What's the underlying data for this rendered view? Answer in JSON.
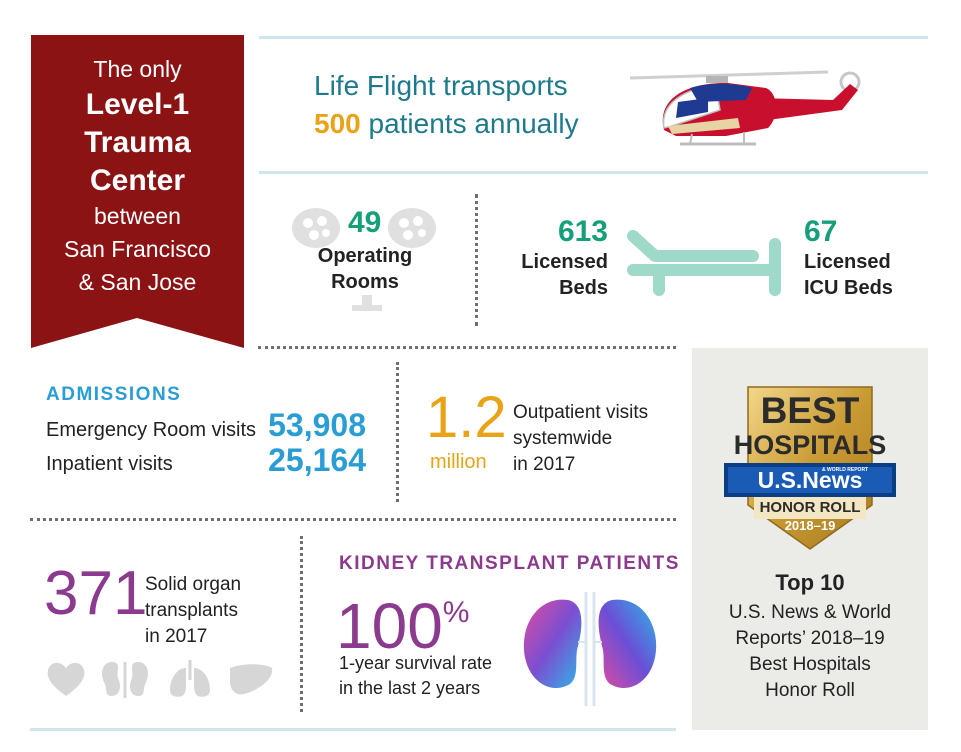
{
  "banner": {
    "line1": "The only",
    "line2": "Level-1",
    "line3": "Trauma",
    "line4": "Center",
    "line5": "between",
    "line6": "San Francisco",
    "line7": "& San Jose",
    "color": "#8b1314"
  },
  "life_flight": {
    "line1": "Life Flight transports",
    "count": "500",
    "line2_suffix": "patients annually",
    "icon": "helicopter-icon"
  },
  "operating_rooms": {
    "count": "49",
    "label_line1": "Operating",
    "label_line2": "Rooms",
    "icon": "surgical-light-icon"
  },
  "beds": {
    "licensed_count": "613",
    "licensed_line1": "Licensed",
    "licensed_line2": "Beds",
    "icu_count": "67",
    "icu_line1": "Licensed",
    "icu_line2": "ICU Beds",
    "icon": "hospital-bed-icon"
  },
  "admissions": {
    "heading": "ADMISSIONS",
    "er_label": "Emergency Room visits",
    "er_value": "53,908",
    "inpatient_label": "Inpatient visits",
    "inpatient_value": "25,164"
  },
  "outpatient": {
    "value": "1.2",
    "unit": "million",
    "line1": "Outpatient visits",
    "line2": "systemwide",
    "line3": "in 2017"
  },
  "organ": {
    "value": "371",
    "line1": "Solid organ",
    "line2": "transplants",
    "line3": "in 2017",
    "icons": [
      "heart-icon",
      "kidney-icon",
      "lungs-icon",
      "liver-icon"
    ]
  },
  "kidney": {
    "heading": "KIDNEY TRANSPLANT PATIENTS",
    "value": "100",
    "unit": "%",
    "line1": "1-year survival rate",
    "line2": "in the last 2 years",
    "icon": "kidneys-icon"
  },
  "best_hospitals": {
    "badge_line1": "BEST",
    "badge_line2": "HOSPITALS",
    "badge_brand": "U.S.News",
    "badge_brand_small": "& WORLD REPORT",
    "badge_line3": "HONOR ROLL",
    "badge_line4": "2018–19",
    "title": "Top 10",
    "line1": "U.S. News & World",
    "line2": "Reports’ 2018–19",
    "line3": "Best Hospitals",
    "line4": "Honor Roll"
  }
}
